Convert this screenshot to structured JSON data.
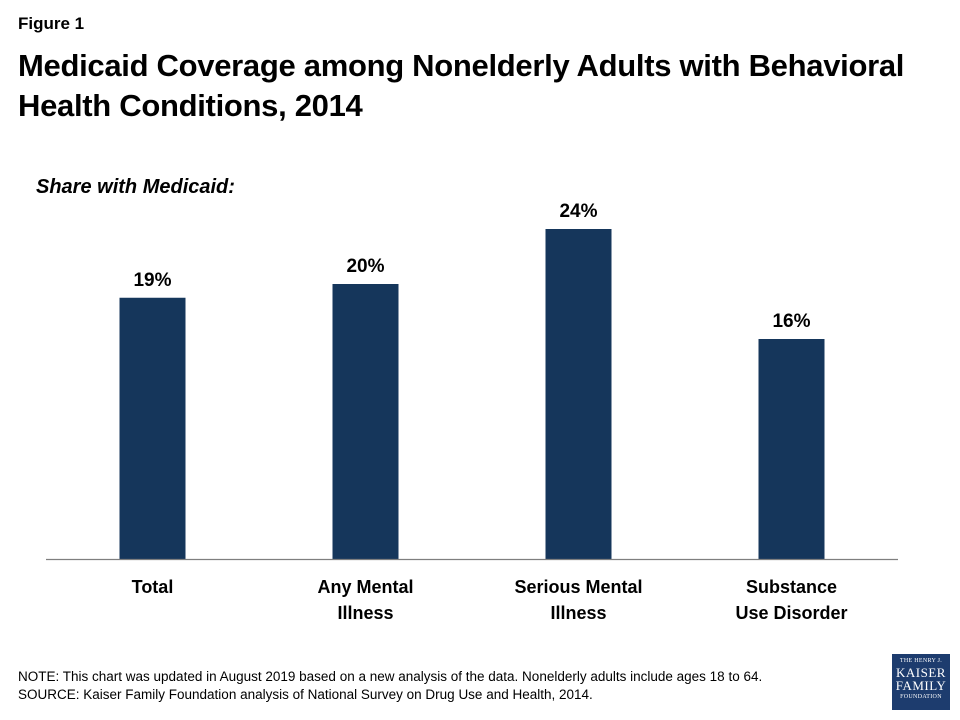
{
  "figure_label": "Figure 1",
  "title": "Medicaid Coverage among Nonelderly Adults with Behavioral Health Conditions, 2014",
  "subtitle": "Share with Medicaid:",
  "chart_data": {
    "type": "bar",
    "categories": [
      [
        "Total"
      ],
      [
        "Any Mental",
        "Illness"
      ],
      [
        "Serious Mental",
        "Illness"
      ],
      [
        "Substance",
        "Use Disorder"
      ]
    ],
    "values": [
      19,
      20,
      24,
      16
    ],
    "value_labels": [
      "19%",
      "20%",
      "24%",
      "16%"
    ],
    "ylim": [
      0,
      28
    ],
    "grid": false,
    "bar_color": "#15365b"
  },
  "notes": {
    "note": "NOTE: This chart was updated in August 2019 based on a new analysis of the data. Nonelderly adults include ages 18 to 64.",
    "source": "SOURCE: Kaiser Family Foundation  analysis of National Survey on Drug Use and Health, 2014."
  },
  "logo": {
    "line1": "THE HENRY J.",
    "line2": "KAISER",
    "line3": "FAMILY",
    "line4": "FOUNDATION"
  }
}
